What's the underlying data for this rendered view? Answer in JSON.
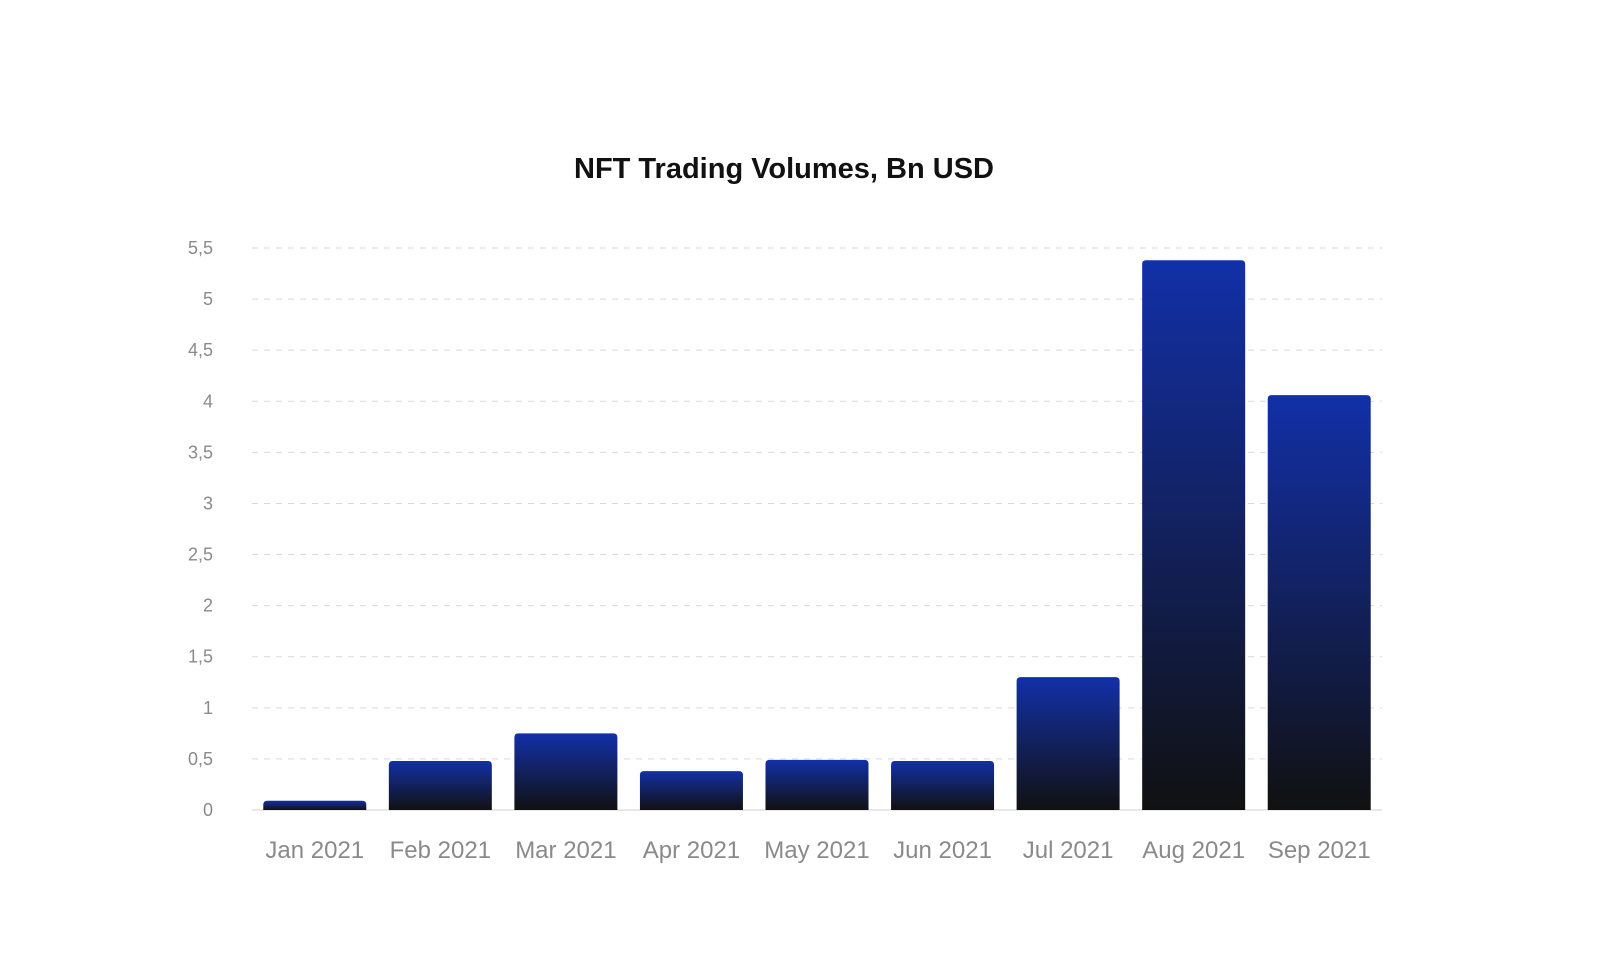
{
  "chart_data": {
    "type": "bar",
    "title": "NFT Trading Volumes, Bn USD",
    "xlabel": "",
    "ylabel": "",
    "categories": [
      "Jan 2021",
      "Feb 2021",
      "Mar 2021",
      "Apr 2021",
      "May 2021",
      "Jun 2021",
      "Jul 2021",
      "Aug 2021",
      "Sep 2021"
    ],
    "values": [
      0.09,
      0.48,
      0.75,
      0.38,
      0.49,
      0.48,
      1.3,
      5.38,
      4.06
    ],
    "ylim": [
      0,
      5.5
    ],
    "yticks": [
      0,
      0.5,
      1,
      1.5,
      2,
      2.5,
      3,
      3.5,
      4,
      4.5,
      5,
      5.5
    ],
    "ytick_labels": [
      "0",
      "0,5",
      "1",
      "1,5",
      "2",
      "2,5",
      "3",
      "3,5",
      "4",
      "4,5",
      "5",
      "5,5"
    ],
    "grid": true,
    "colors": {
      "bar_top": "#1230a8",
      "bar_bottom": "#111111",
      "grid": "#d9d9d9",
      "tick_text": "#8a8a8a",
      "title_text": "#111111"
    }
  }
}
